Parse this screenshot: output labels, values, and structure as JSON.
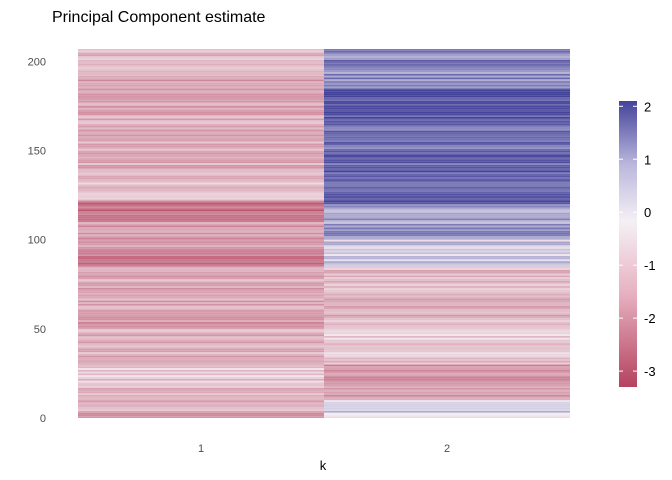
{
  "chart_data": {
    "type": "heatmap",
    "title": "Principal Component estimate",
    "xlabel": "k",
    "ylabel": "",
    "x_categories": [
      "1",
      "2"
    ],
    "y_range": [
      0,
      207
    ],
    "y_ticks": [
      "0",
      "50",
      "100",
      "150",
      "200"
    ],
    "legend": {
      "position": "right",
      "range": [
        -3.3,
        2.1
      ],
      "ticks": [
        "2",
        "1",
        "0",
        "-1",
        "-2",
        "-3"
      ],
      "low_color": "#b5425f",
      "mid_color": "#f5f0f5",
      "high_color": "#44439a"
    },
    "series": [
      {
        "name": "1",
        "segments": [
          {
            "from": 0,
            "to": 3,
            "value": -1.8
          },
          {
            "from": 3,
            "to": 20,
            "value": -1.0
          },
          {
            "from": 20,
            "to": 30,
            "value": -0.6
          },
          {
            "from": 30,
            "to": 50,
            "value": -1.1
          },
          {
            "from": 50,
            "to": 60,
            "value": -1.5
          },
          {
            "from": 60,
            "to": 85,
            "value": -1.2
          },
          {
            "from": 85,
            "to": 95,
            "value": -2.2
          },
          {
            "from": 95,
            "to": 110,
            "value": -1.4
          },
          {
            "from": 110,
            "to": 122,
            "value": -2.4
          },
          {
            "from": 122,
            "to": 140,
            "value": -0.7
          },
          {
            "from": 140,
            "to": 170,
            "value": -1.1
          },
          {
            "from": 170,
            "to": 195,
            "value": -1.3
          },
          {
            "from": 195,
            "to": 207,
            "value": -0.9
          }
        ]
      },
      {
        "name": "2",
        "segments": [
          {
            "from": 0,
            "to": 10,
            "value": 0.2
          },
          {
            "from": 10,
            "to": 30,
            "value": -1.5
          },
          {
            "from": 30,
            "to": 55,
            "value": -0.6
          },
          {
            "from": 55,
            "to": 70,
            "value": -1.2
          },
          {
            "from": 70,
            "to": 85,
            "value": -0.9
          },
          {
            "from": 85,
            "to": 100,
            "value": 0.3
          },
          {
            "from": 100,
            "to": 120,
            "value": 0.9
          },
          {
            "from": 120,
            "to": 150,
            "value": 1.8
          },
          {
            "from": 150,
            "to": 165,
            "value": 1.4
          },
          {
            "from": 165,
            "to": 185,
            "value": 1.9
          },
          {
            "from": 185,
            "to": 207,
            "value": 1.2
          }
        ]
      }
    ]
  }
}
